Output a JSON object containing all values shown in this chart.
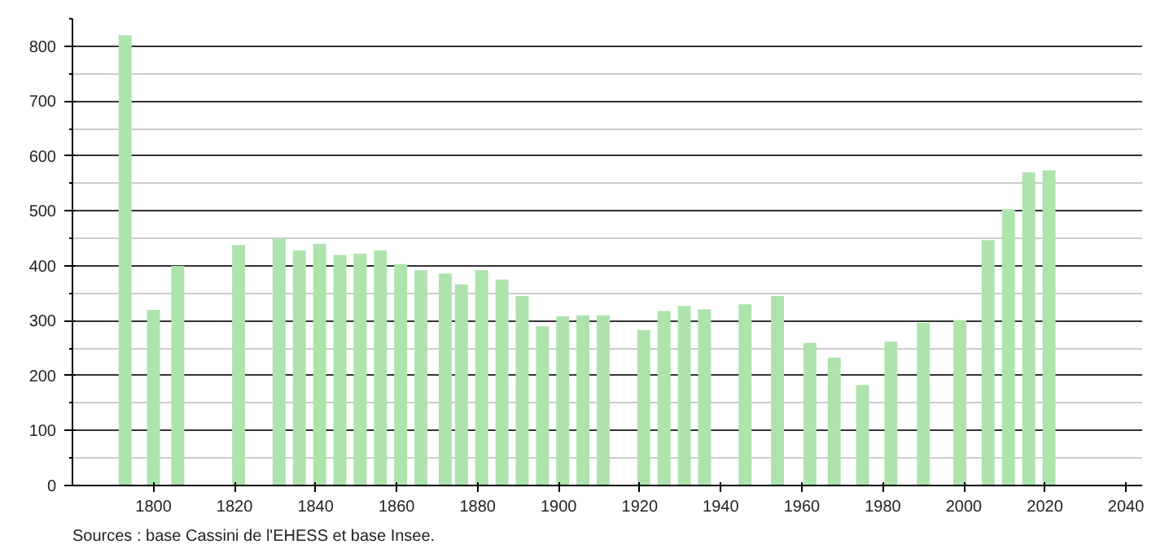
{
  "chart_data": {
    "type": "bar",
    "color": "#aee3ad",
    "x": [
      1793,
      1800,
      1806,
      1821,
      1831,
      1836,
      1841,
      1846,
      1851,
      1856,
      1861,
      1866,
      1872,
      1876,
      1881,
      1886,
      1891,
      1896,
      1901,
      1906,
      1911,
      1921,
      1926,
      1931,
      1936,
      1946,
      1954,
      1962,
      1968,
      1975,
      1982,
      1990,
      1999,
      2006,
      2011,
      2016,
      2021
    ],
    "values": [
      820,
      320,
      400,
      438,
      450,
      428,
      440,
      420,
      422,
      428,
      403,
      392,
      386,
      366,
      392,
      375,
      345,
      290,
      308,
      310,
      310,
      283,
      318,
      327,
      321,
      330,
      345,
      260,
      233,
      183,
      262,
      296,
      301,
      447,
      503,
      570,
      574
    ],
    "xlim": [
      1780,
      2044
    ],
    "xticks": [
      1800,
      1820,
      1840,
      1860,
      1880,
      1900,
      1920,
      1940,
      1960,
      1980,
      2000,
      2020,
      2040
    ],
    "ylim": [
      0,
      850
    ],
    "yticks": [
      0,
      100,
      200,
      300,
      400,
      500,
      600,
      700,
      800
    ],
    "grid": "y",
    "annotations": [
      "Sources : base Cassini de l'EHESS et base Insee."
    ]
  }
}
